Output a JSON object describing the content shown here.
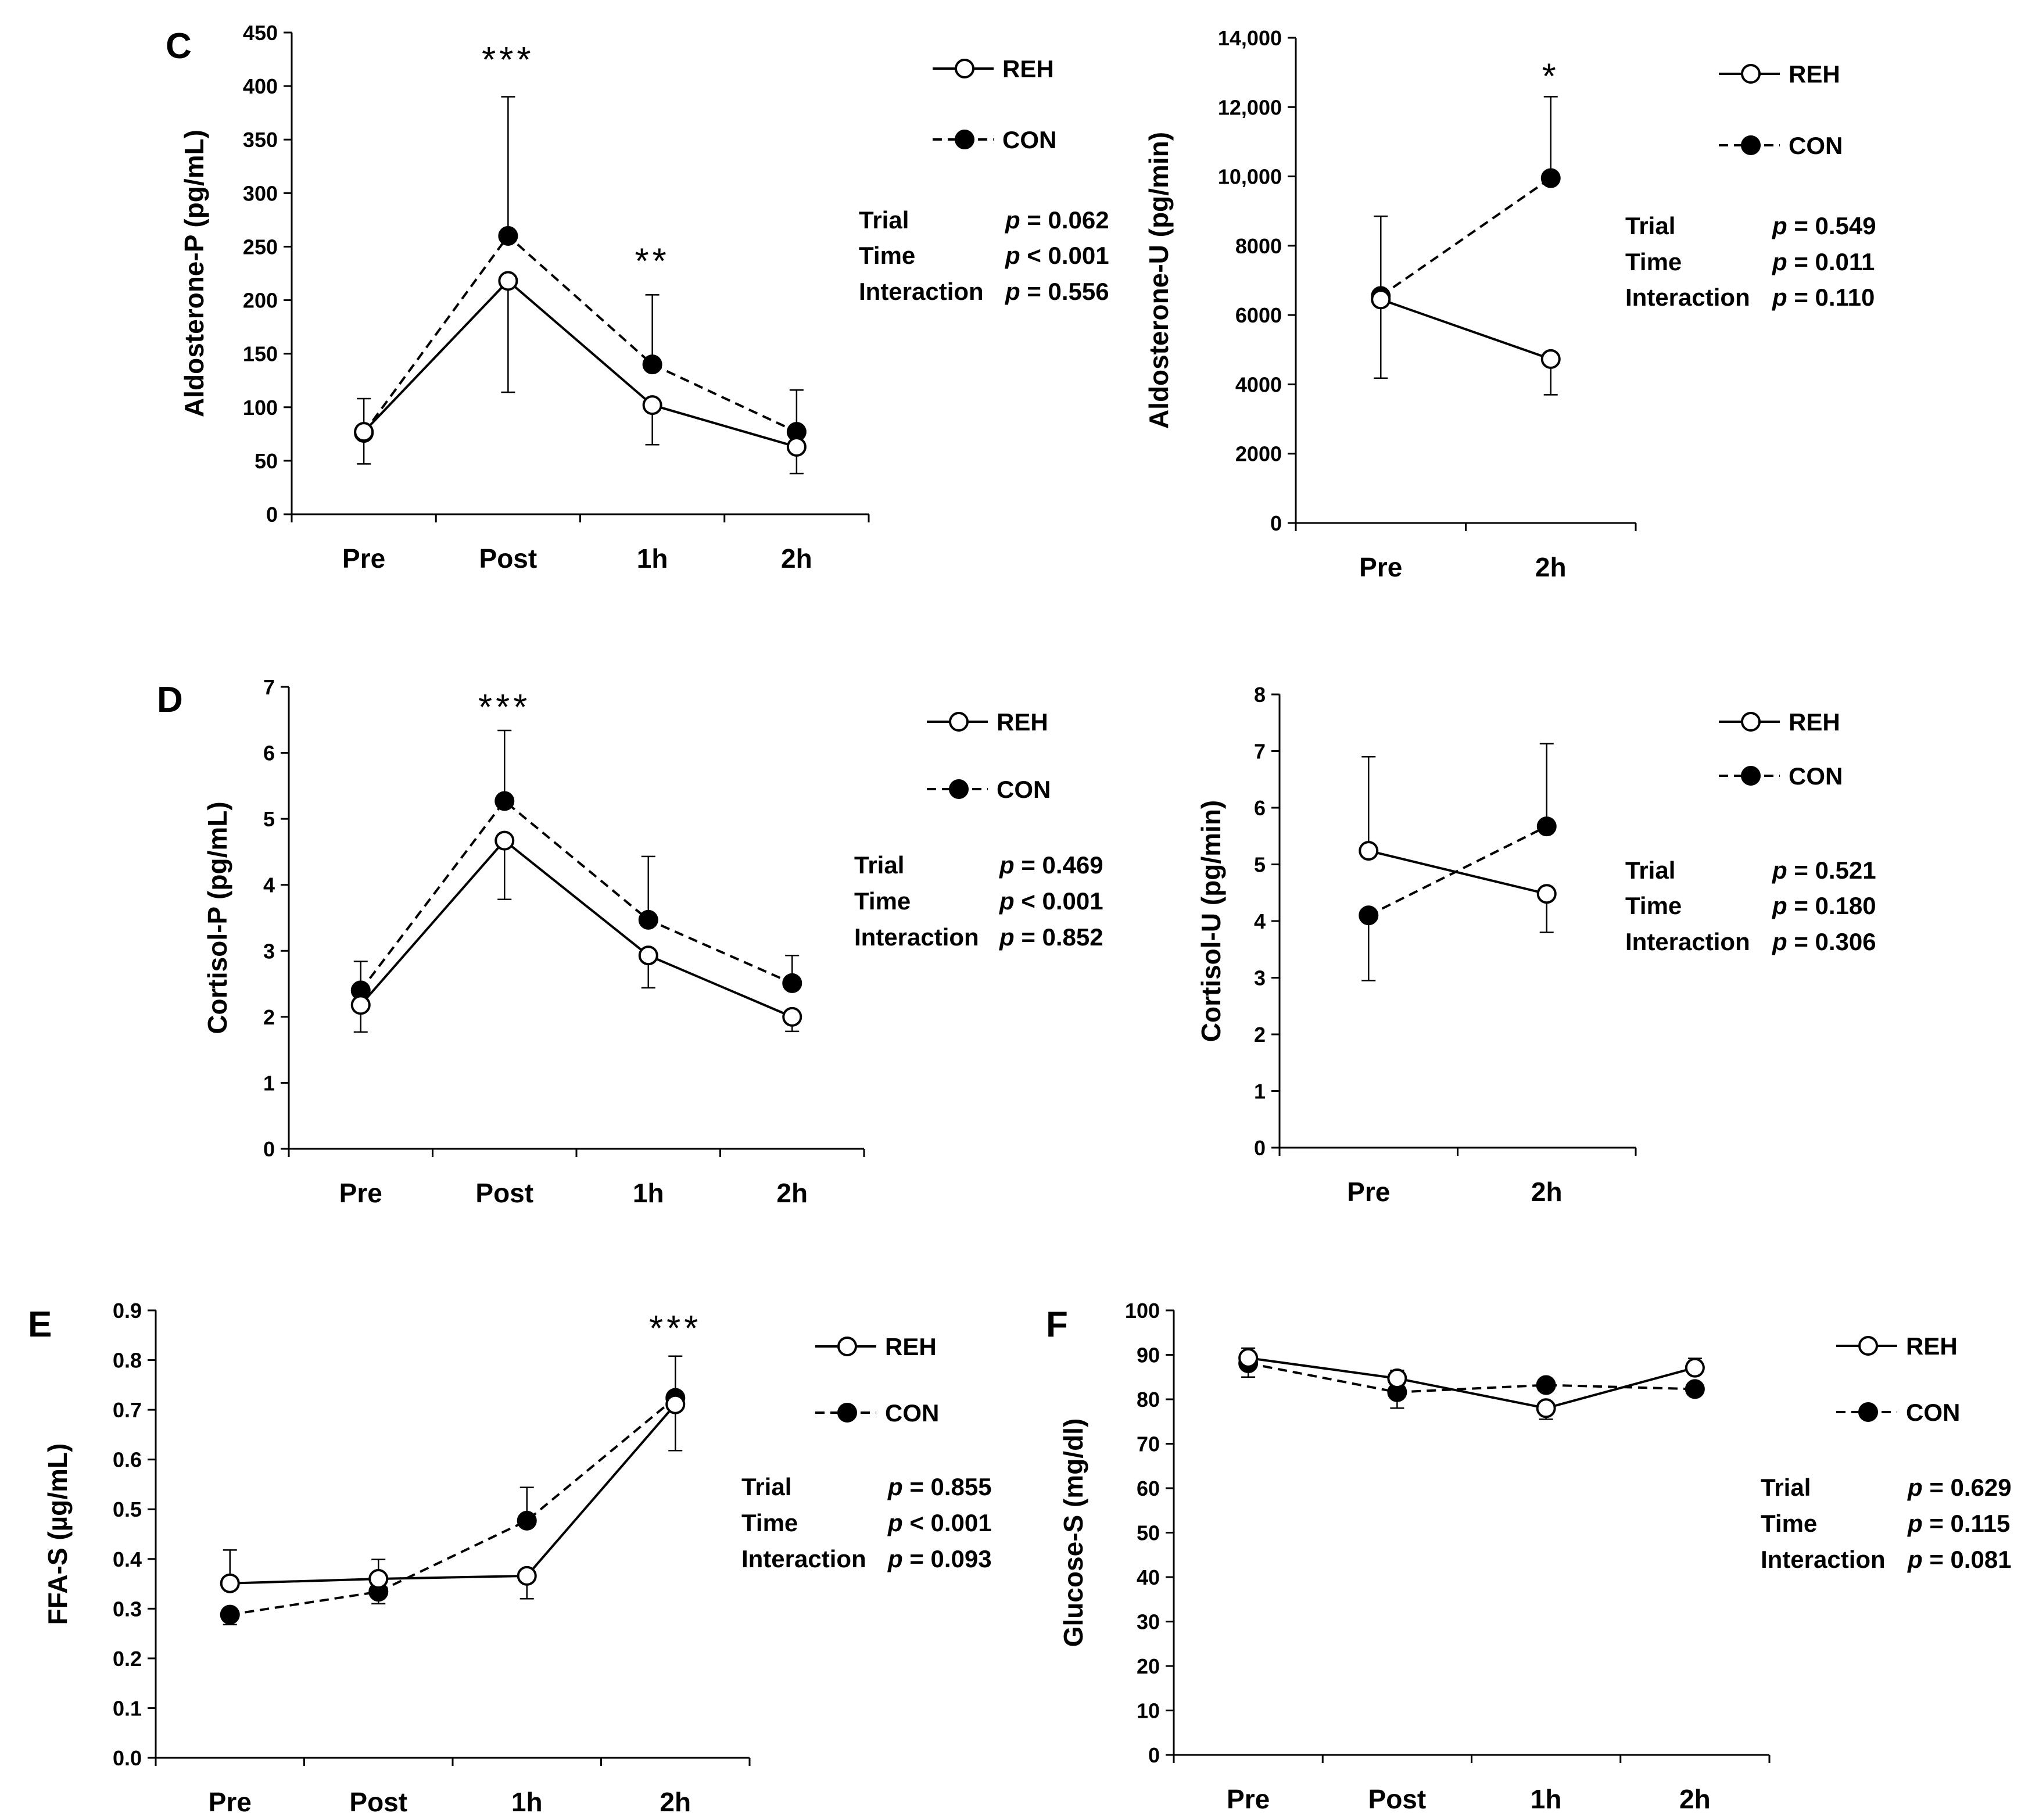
{
  "chart_data": [
    {
      "type": "line",
      "panel_letter": "C",
      "ylabel": "Aldosterone-P (pg/mL)",
      "categories": [
        "Pre",
        "Post",
        "1h",
        "2h"
      ],
      "ylim": [
        0,
        450
      ],
      "yticks": [
        "0",
        "50",
        "100",
        "150",
        "200",
        "250",
        "300",
        "350",
        "400",
        "450"
      ],
      "series": [
        {
          "name": "REH",
          "style": "solid-open",
          "values": [
            77,
            218,
            102,
            63
          ],
          "err_low": [
            47,
            114,
            65,
            38
          ],
          "err_high": null
        },
        {
          "name": "CON",
          "style": "dashed-filled",
          "values": [
            76,
            260,
            140,
            77
          ],
          "err_low": null,
          "err_high": [
            108,
            390,
            205,
            116
          ]
        }
      ],
      "annotations": [
        {
          "category": "Post",
          "text": "***",
          "y": 425
        },
        {
          "category": "1h",
          "text": "**",
          "y": 237
        }
      ],
      "stats": [
        {
          "label": "Trial",
          "p": "0.062",
          "op": "="
        },
        {
          "label": "Time",
          "p": "0.001",
          "op": "<"
        },
        {
          "label": "Interaction",
          "p": "0.556",
          "op": "="
        }
      ]
    },
    {
      "type": "line",
      "panel_letter": "",
      "ylabel": "Aldosterone-U (pg/min)",
      "categories": [
        "Pre",
        "2h"
      ],
      "ylim": [
        0,
        14000
      ],
      "yticks": [
        "0",
        "2000",
        "4000",
        "6000",
        "8000",
        "10,000",
        "12,000",
        "14,000"
      ],
      "series": [
        {
          "name": "REH",
          "style": "solid-open",
          "values": [
            6450,
            4730
          ],
          "err_low": [
            4180,
            3700
          ],
          "err_high": null
        },
        {
          "name": "CON",
          "style": "dashed-filled",
          "values": [
            6550,
            9950
          ],
          "err_low": null,
          "err_high": [
            8850,
            12300
          ]
        }
      ],
      "annotations": [
        {
          "category": "2h",
          "text": "*",
          "y": 12900
        }
      ],
      "stats": [
        {
          "label": "Trial",
          "p": "0.549",
          "op": "="
        },
        {
          "label": "Time",
          "p": "0.011",
          "op": "="
        },
        {
          "label": "Interaction",
          "p": "0.110",
          "op": "="
        }
      ]
    },
    {
      "type": "line",
      "panel_letter": "D",
      "ylabel": "Cortisol-P (pg/mL)",
      "categories": [
        "Pre",
        "Post",
        "1h",
        "2h"
      ],
      "ylim": [
        0,
        7
      ],
      "yticks": [
        "0",
        "1",
        "2",
        "3",
        "4",
        "5",
        "6",
        "7"
      ],
      "series": [
        {
          "name": "REH",
          "style": "solid-open",
          "values": [
            2.18,
            4.67,
            2.93,
            2.0
          ],
          "err_low": [
            1.77,
            3.78,
            2.44,
            1.78
          ],
          "err_high": null
        },
        {
          "name": "CON",
          "style": "dashed-filled",
          "values": [
            2.4,
            5.27,
            3.47,
            2.51
          ],
          "err_low": null,
          "err_high": [
            2.84,
            6.34,
            4.43,
            2.93
          ]
        }
      ],
      "annotations": [
        {
          "category": "Post",
          "text": "***",
          "y": 6.7
        }
      ],
      "stats": [
        {
          "label": "Trial",
          "p": "0.469",
          "op": "="
        },
        {
          "label": "Time",
          "p": "0.001",
          "op": "<"
        },
        {
          "label": "Interaction",
          "p": "0.852",
          "op": "="
        }
      ]
    },
    {
      "type": "line",
      "panel_letter": "",
      "ylabel": "Cortisol-U (pg/min)",
      "categories": [
        "Pre",
        "2h"
      ],
      "ylim": [
        0,
        8
      ],
      "yticks": [
        "0",
        "1",
        "2",
        "3",
        "4",
        "5",
        "6",
        "7",
        "8"
      ],
      "series": [
        {
          "name": "REH",
          "style": "solid-open",
          "values": [
            5.24,
            4.48
          ],
          "err_low": null,
          "err_high": [
            6.9,
            null
          ],
          "err_low_extra": [
            null,
            3.8
          ]
        },
        {
          "name": "CON",
          "style": "dashed-filled",
          "values": [
            4.1,
            5.67
          ],
          "err_low": [
            2.95,
            null
          ],
          "err_high": [
            null,
            7.13
          ]
        }
      ],
      "annotations": [],
      "stats": [
        {
          "label": "Trial",
          "p": "0.521",
          "op": "="
        },
        {
          "label": "Time",
          "p": "0.180",
          "op": "="
        },
        {
          "label": "Interaction",
          "p": "0.306",
          "op": "="
        }
      ]
    },
    {
      "type": "line",
      "panel_letter": "E",
      "ylabel": "FFA-S (µg/mL)",
      "categories": [
        "Pre",
        "Post",
        "1h",
        "2h"
      ],
      "ylim": [
        0,
        0.9
      ],
      "yticks": [
        "0.0",
        "0.1",
        "0.2",
        "0.3",
        "0.4",
        "0.5",
        "0.6",
        "0.7",
        "0.8",
        "0.9"
      ],
      "series": [
        {
          "name": "REH",
          "style": "solid-open",
          "values": [
            0.351,
            0.36,
            0.366,
            0.711
          ],
          "err_low": [
            null,
            null,
            0.32,
            0.618
          ],
          "err_high": [
            0.418,
            0.399,
            null,
            null
          ]
        },
        {
          "name": "CON",
          "style": "dashed-filled",
          "values": [
            0.288,
            0.334,
            0.477,
            0.724
          ],
          "err_low": [
            0.268,
            0.31,
            null,
            null
          ],
          "err_high": [
            null,
            null,
            0.544,
            0.808
          ]
        }
      ],
      "annotations": [
        {
          "category": "2h",
          "text": "***",
          "y": 0.865
        }
      ],
      "stats": [
        {
          "label": "Trial",
          "p": "0.855",
          "op": "="
        },
        {
          "label": "Time",
          "p": "0.001",
          "op": "<"
        },
        {
          "label": "Interaction",
          "p": "0.093",
          "op": "="
        }
      ]
    },
    {
      "type": "line",
      "panel_letter": "F",
      "ylabel": "Glucose-S (mg/dl)",
      "categories": [
        "Pre",
        "Post",
        "1h",
        "2h"
      ],
      "ylim": [
        0,
        100
      ],
      "yticks": [
        "0",
        "10",
        "20",
        "30",
        "40",
        "50",
        "60",
        "70",
        "80",
        "90",
        "100"
      ],
      "series": [
        {
          "name": "REH",
          "style": "solid-open",
          "values": [
            89.3,
            84.7,
            78.0,
            87.1
          ],
          "err_low": [
            null,
            null,
            75.5,
            null
          ],
          "err_high": [
            91.5,
            86.5,
            null,
            89.2
          ]
        },
        {
          "name": "CON",
          "style": "dashed-filled",
          "values": [
            88.1,
            81.6,
            83.2,
            82.3
          ],
          "err_low": [
            85.0,
            78.0,
            null,
            null
          ],
          "err_high": null
        }
      ],
      "annotations": [],
      "stats": [
        {
          "label": "Trial",
          "p": "0.629",
          "op": "="
        },
        {
          "label": "Time",
          "p": "0.115",
          "op": "="
        },
        {
          "label": "Interaction",
          "p": "0.081",
          "op": "="
        }
      ]
    }
  ]
}
